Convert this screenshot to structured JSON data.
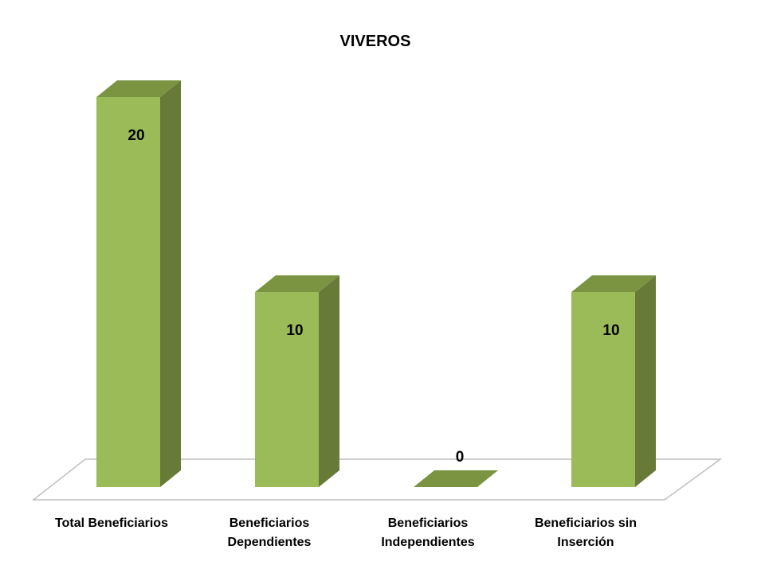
{
  "chart_data": {
    "type": "bar",
    "title": "VIVEROS",
    "categories": [
      [
        "Total Beneficiarios"
      ],
      [
        "Beneficiarios",
        "Dependientes"
      ],
      [
        "Beneficiarios",
        "Independientes"
      ],
      [
        "Beneficiarios sin",
        "Inserción"
      ]
    ],
    "values": [
      20,
      10,
      0,
      10
    ],
    "data_labels": [
      "20",
      "10",
      "0",
      "10"
    ],
    "ylim": [
      0,
      20
    ],
    "grid": false,
    "legend": "none",
    "three_d": true,
    "colors": {
      "bar_front": "#9BBB59",
      "bar_side": "#687A38",
      "bar_top": "#7A9441",
      "floor_line": "#BFBFBF"
    }
  }
}
